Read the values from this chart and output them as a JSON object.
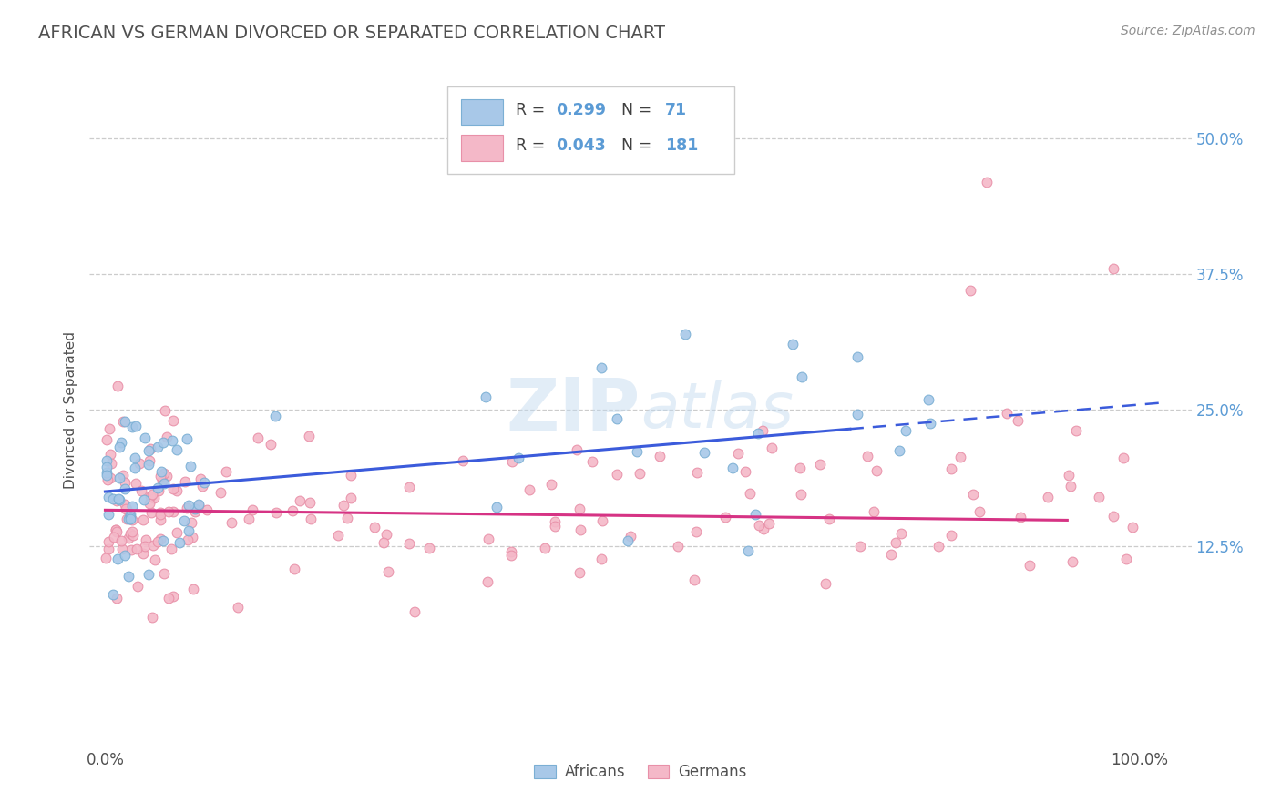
{
  "title": "AFRICAN VS GERMAN DIVORCED OR SEPARATED CORRELATION CHART",
  "source": "Source: ZipAtlas.com",
  "ylabel": "Divorced or Separated",
  "watermark": "ZIPatlas",
  "xtick_labels": [
    "0.0%",
    "100.0%"
  ],
  "ytick_labels": [
    "12.5%",
    "25.0%",
    "37.5%",
    "50.0%"
  ],
  "ytick_values": [
    0.125,
    0.25,
    0.375,
    0.5
  ],
  "legend_R_african": "0.299",
  "legend_N_african": "71",
  "legend_R_german": "0.043",
  "legend_N_german": "181",
  "african_color": "#a8c8e8",
  "german_color": "#f4b8c8",
  "african_edge": "#7bafd4",
  "german_edge": "#e890a8",
  "trend_african_color": "#3b5bdb",
  "trend_german_color": "#d63384",
  "title_color": "#505050",
  "source_color": "#909090",
  "background_color": "#ffffff",
  "grid_color": "#cccccc",
  "ytick_color": "#5b9bd5",
  "xtick_color": "#505050",
  "legend_box_color": "#f0f4f8",
  "legend_edge_color": "#cccccc"
}
